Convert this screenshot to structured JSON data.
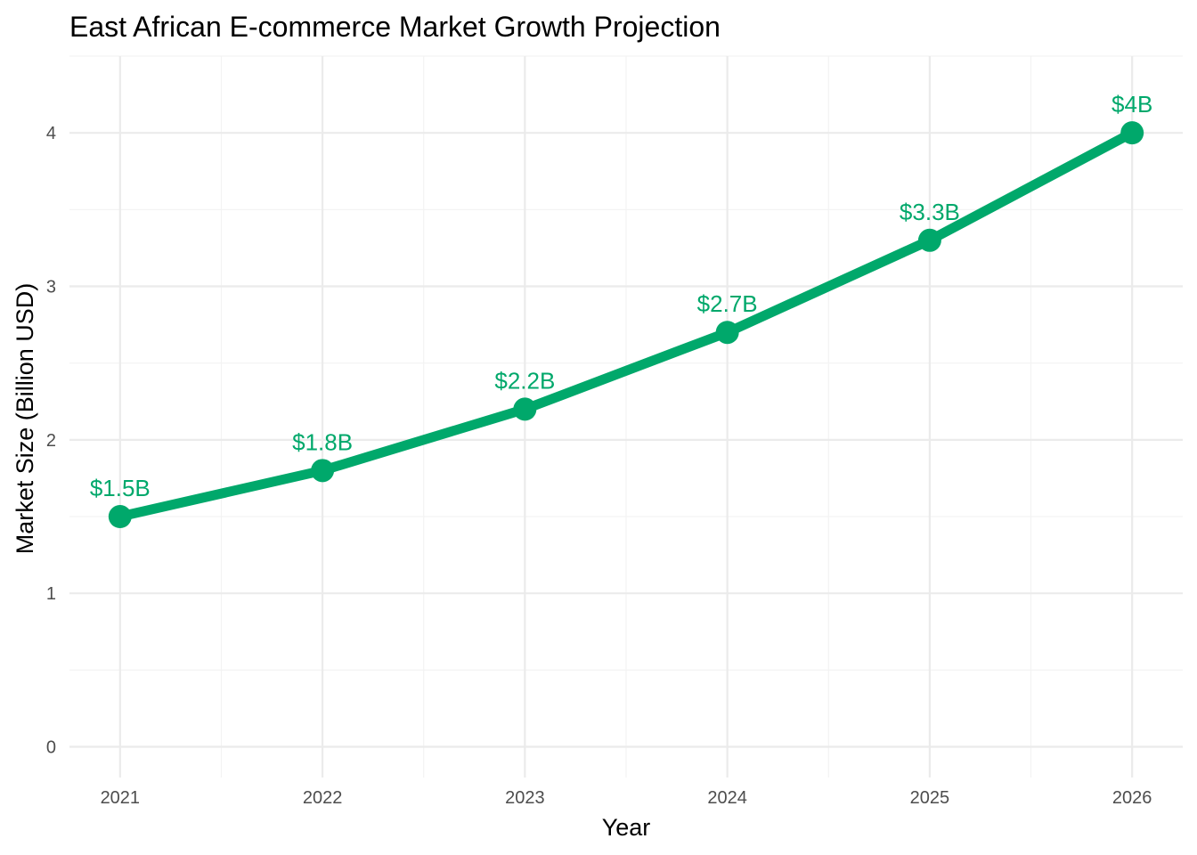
{
  "chart_data": {
    "type": "line",
    "title": "East African E-commerce Market Growth Projection",
    "xlabel": "Year",
    "ylabel": "Market Size (Billion USD)",
    "x": [
      2021,
      2022,
      2023,
      2024,
      2025,
      2026
    ],
    "x_tick_labels": [
      "2021",
      "2022",
      "2023",
      "2024",
      "2025",
      "2026"
    ],
    "y_ticks": [
      0,
      1,
      2,
      3,
      4
    ],
    "y_tick_labels": [
      "0",
      "1",
      "2",
      "3",
      "4"
    ],
    "xlim": [
      2020.75,
      2026.25
    ],
    "ylim": [
      -0.2,
      4.5
    ],
    "grid": true,
    "legend": "none",
    "series": [
      {
        "values": [
          1.5,
          1.8,
          2.2,
          2.7,
          3.3,
          4.0
        ],
        "data_labels": [
          "$1.5B",
          "$1.8B",
          "$2.2B",
          "$2.7B",
          "$3.3B",
          "$4B"
        ]
      }
    ],
    "colors": {
      "line": "#00a86b",
      "label": "#00a86b"
    }
  }
}
